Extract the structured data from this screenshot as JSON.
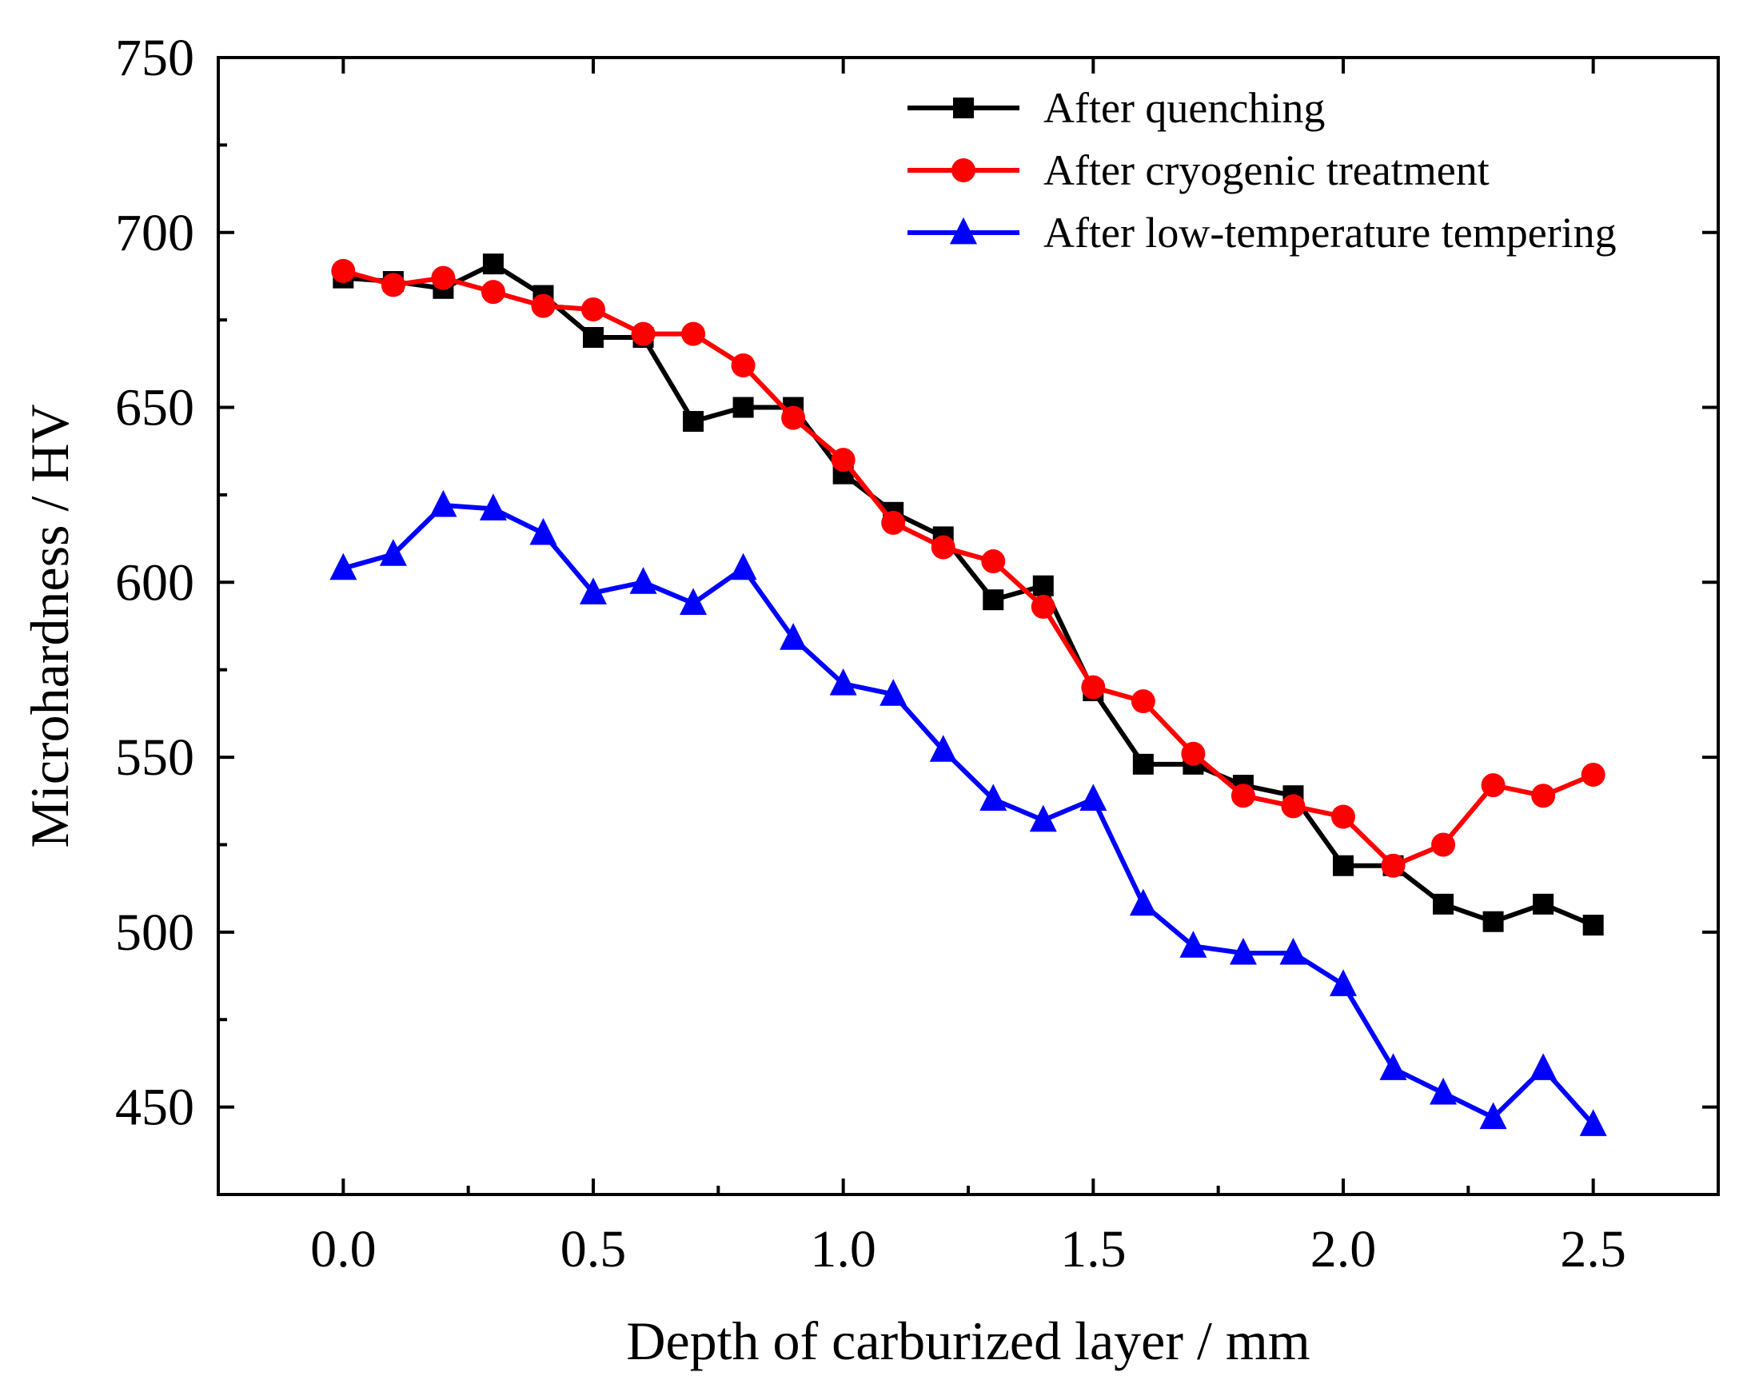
{
  "chart_data": {
    "type": "line",
    "title": "",
    "xlabel": "Depth of carburized layer / mm",
    "ylabel": "Microhardness / HV",
    "xlim": [
      -0.25,
      2.75
    ],
    "ylim": [
      425,
      750
    ],
    "x_ticks": [
      0.0,
      0.5,
      1.0,
      1.5,
      2.0,
      2.5
    ],
    "x_tick_labels": [
      "0.0",
      "0.5",
      "1.0",
      "1.5",
      "2.0",
      "2.5"
    ],
    "y_ticks": [
      450,
      500,
      550,
      600,
      650,
      700,
      750
    ],
    "y_tick_labels": [
      "450",
      "500",
      "550",
      "600",
      "650",
      "700",
      "750"
    ],
    "grid": false,
    "legend_position": "top-right",
    "x": [
      0.0,
      0.1,
      0.2,
      0.3,
      0.4,
      0.5,
      0.6,
      0.7,
      0.8,
      0.9,
      1.0,
      1.1,
      1.2,
      1.3,
      1.4,
      1.5,
      1.6,
      1.7,
      1.8,
      1.9,
      2.0,
      2.1,
      2.2,
      2.3,
      2.4,
      2.5
    ],
    "series": [
      {
        "name": "After quenching",
        "color": "#000000",
        "marker": "square",
        "values": [
          687,
          686,
          684,
          691,
          682,
          670,
          670,
          646,
          650,
          650,
          631,
          620,
          613,
          595,
          599,
          569,
          548,
          548,
          542,
          539,
          519,
          519,
          508,
          503,
          508,
          502
        ]
      },
      {
        "name": "After cryogenic treatment",
        "color": "#ff0000",
        "marker": "circle",
        "values": [
          689,
          685,
          687,
          683,
          679,
          678,
          671,
          671,
          662,
          647,
          635,
          617,
          610,
          606,
          593,
          570,
          566,
          551,
          539,
          536,
          533,
          519,
          525,
          542,
          539,
          545
        ]
      },
      {
        "name": "After low-temperature tempering",
        "color": "#0000ff",
        "marker": "triangle",
        "values": [
          604,
          608,
          622,
          621,
          614,
          597,
          600,
          594,
          604,
          584,
          571,
          568,
          552,
          538,
          532,
          538,
          508,
          496,
          494,
          494,
          485,
          461,
          454,
          447,
          461,
          445
        ]
      }
    ]
  }
}
